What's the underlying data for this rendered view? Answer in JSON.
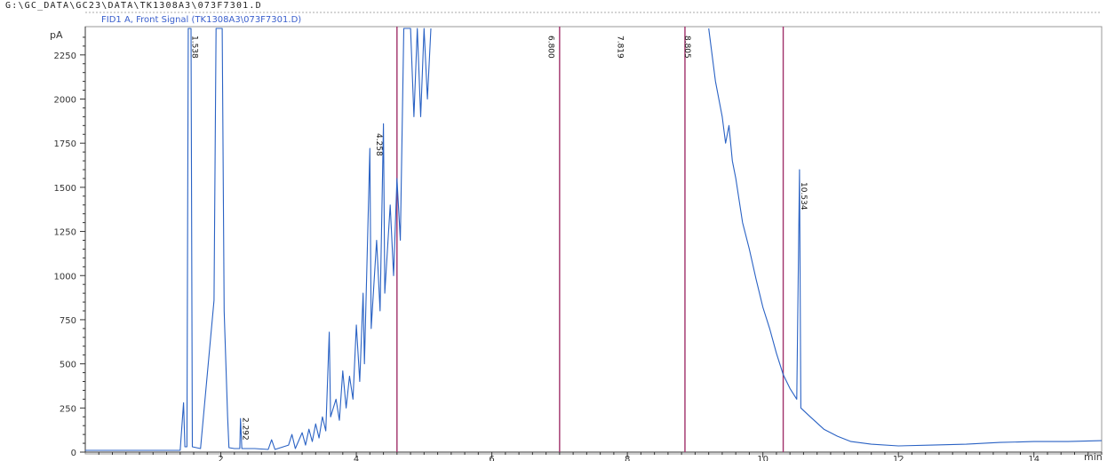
{
  "file_path": "G:\\GC_DATA\\GC23\\DATA\\TK1308A3\\073F7301.D",
  "signal_title": "FID1 A, Front Signal (TK1308A3\\073F7301.D)",
  "colors": {
    "trace": "#2a62c4",
    "marker": "#a0306a",
    "axis": "#333333",
    "frame": "#999999",
    "signal_title": "#3a5fcd"
  },
  "chart_data": {
    "type": "line",
    "title": "FID1 A, Front Signal (TK1308A3\\073F7301.D)",
    "xlabel": "min",
    "ylabel": "pA",
    "xlim": [
      0,
      15
    ],
    "ylim": [
      0,
      2400
    ],
    "x_ticks": [
      2,
      4,
      6,
      8,
      10,
      12,
      14
    ],
    "y_ticks": [
      0,
      250,
      500,
      750,
      1000,
      1250,
      1500,
      1750,
      2000,
      2250
    ],
    "grid": false,
    "peak_labels": [
      {
        "label": "1.538",
        "x": 1.54
      },
      {
        "label": "2.292",
        "x": 2.29
      },
      {
        "label": "4.258",
        "x": 4.26
      },
      {
        "label": "6.800",
        "x": 6.8
      },
      {
        "label": "7.819",
        "x": 7.82
      },
      {
        "label": "8.805",
        "x": 8.81
      },
      {
        "label": "10.534",
        "x": 10.53
      }
    ],
    "integration_markers": [
      4.6,
      7.0,
      8.85,
      10.3
    ],
    "series": [
      {
        "points": [
          [
            0.0,
            10
          ],
          [
            0.5,
            10
          ],
          [
            1.0,
            10
          ],
          [
            1.4,
            10
          ],
          [
            1.45,
            280
          ],
          [
            1.47,
            30
          ],
          [
            1.5,
            30
          ],
          [
            1.52,
            2400
          ],
          [
            1.56,
            2400
          ],
          [
            1.58,
            30
          ],
          [
            1.7,
            20
          ],
          [
            1.9,
            860
          ],
          [
            1.93,
            2400
          ],
          [
            2.0,
            2400
          ],
          [
            2.02,
            2400
          ],
          [
            2.05,
            800
          ],
          [
            2.1,
            200
          ],
          [
            2.12,
            25
          ],
          [
            2.2,
            20
          ],
          [
            2.28,
            20
          ],
          [
            2.29,
            190
          ],
          [
            2.31,
            20
          ],
          [
            2.5,
            20
          ],
          [
            2.7,
            15
          ],
          [
            2.75,
            70
          ],
          [
            2.8,
            15
          ],
          [
            3.0,
            40
          ],
          [
            3.05,
            100
          ],
          [
            3.1,
            20
          ],
          [
            3.2,
            110
          ],
          [
            3.25,
            40
          ],
          [
            3.3,
            130
          ],
          [
            3.35,
            60
          ],
          [
            3.4,
            160
          ],
          [
            3.45,
            80
          ],
          [
            3.5,
            200
          ],
          [
            3.55,
            120
          ],
          [
            3.6,
            680
          ],
          [
            3.62,
            200
          ],
          [
            3.7,
            300
          ],
          [
            3.75,
            180
          ],
          [
            3.8,
            460
          ],
          [
            3.85,
            250
          ],
          [
            3.9,
            430
          ],
          [
            3.95,
            300
          ],
          [
            4.0,
            720
          ],
          [
            4.05,
            400
          ],
          [
            4.1,
            900
          ],
          [
            4.12,
            500
          ],
          [
            4.2,
            1720
          ],
          [
            4.22,
            700
          ],
          [
            4.3,
            1200
          ],
          [
            4.35,
            800
          ],
          [
            4.4,
            1860
          ],
          [
            4.42,
            900
          ],
          [
            4.5,
            1400
          ],
          [
            4.55,
            1000
          ],
          [
            4.6,
            1550
          ],
          [
            4.65,
            1200
          ],
          [
            4.7,
            2400
          ],
          [
            4.8,
            2400
          ],
          [
            4.85,
            1900
          ],
          [
            4.9,
            2400
          ],
          [
            4.95,
            1900
          ],
          [
            5.0,
            2400
          ],
          [
            5.05,
            2000
          ],
          [
            5.1,
            2400
          ]
        ]
      },
      {
        "points": [
          [
            9.2,
            2400
          ],
          [
            9.3,
            2100
          ],
          [
            9.4,
            1900
          ],
          [
            9.45,
            1750
          ],
          [
            9.5,
            1850
          ],
          [
            9.55,
            1650
          ],
          [
            9.6,
            1550
          ],
          [
            9.7,
            1300
          ],
          [
            9.8,
            1150
          ],
          [
            9.9,
            980
          ],
          [
            10.0,
            820
          ],
          [
            10.1,
            700
          ],
          [
            10.2,
            560
          ],
          [
            10.3,
            440
          ],
          [
            10.4,
            360
          ],
          [
            10.5,
            300
          ],
          [
            10.54,
            1600
          ],
          [
            10.56,
            250
          ],
          [
            10.7,
            200
          ],
          [
            10.9,
            130
          ],
          [
            11.1,
            90
          ],
          [
            11.3,
            60
          ],
          [
            11.6,
            45
          ],
          [
            12.0,
            35
          ],
          [
            12.5,
            40
          ],
          [
            13.0,
            45
          ],
          [
            13.5,
            55
          ],
          [
            14.0,
            60
          ],
          [
            14.5,
            60
          ],
          [
            15.0,
            65
          ]
        ]
      }
    ]
  }
}
